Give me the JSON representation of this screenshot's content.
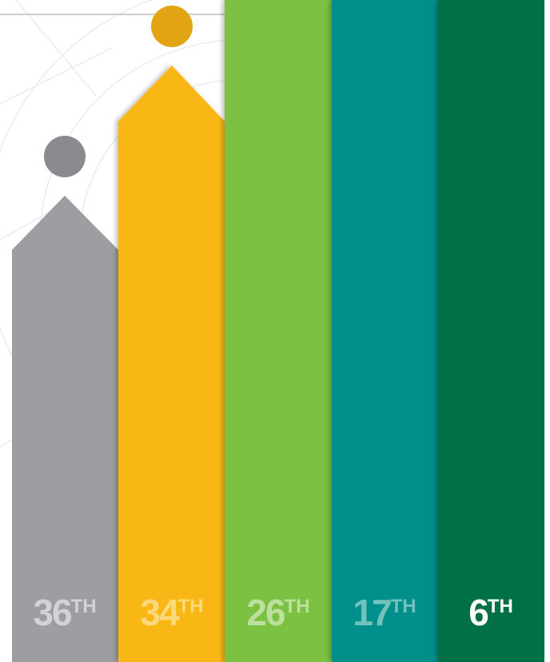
{
  "ranks": [
    {
      "number": "36",
      "suffix": "TH"
    },
    {
      "number": "34",
      "suffix": "TH"
    },
    {
      "number": "26",
      "suffix": "TH"
    },
    {
      "number": "17",
      "suffix": "TH"
    },
    {
      "number": "6",
      "suffix": "TH"
    }
  ]
}
